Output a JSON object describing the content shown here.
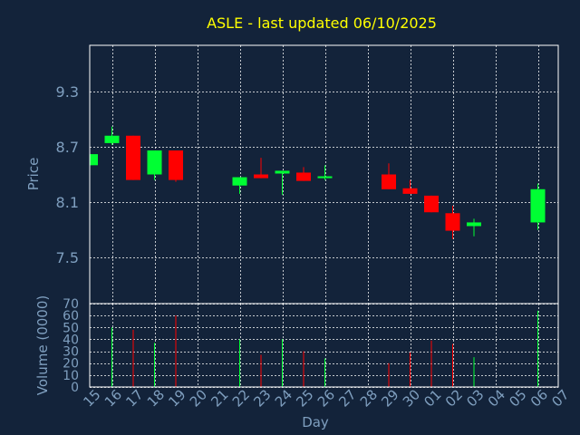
{
  "chart_data": [
    {
      "type": "candlestick",
      "title": "ASLE - last updated 06/10/2025",
      "ylabel": "Price",
      "ylim": [
        7.0,
        9.8
      ],
      "yticks": [
        "7.5",
        "8.1",
        "8.7",
        "9.3"
      ],
      "ytick_values": [
        7.5,
        8.1,
        8.7,
        9.3
      ],
      "grid": true,
      "up_color": "#00ff33",
      "down_color": "#ff0000",
      "candles": [
        {
          "day": "15",
          "open": 8.5,
          "close": 8.62,
          "high": 8.62,
          "low": 8.5
        },
        {
          "day": "16",
          "open": 8.74,
          "close": 8.82,
          "high": 8.92,
          "low": 8.72
        },
        {
          "day": "17",
          "open": 8.82,
          "close": 8.34,
          "high": 8.82,
          "low": 8.34
        },
        {
          "day": "18",
          "open": 8.4,
          "close": 8.66,
          "high": 8.66,
          "low": 8.34
        },
        {
          "day": "19",
          "open": 8.66,
          "close": 8.34,
          "high": 8.66,
          "low": 8.32
        },
        {
          "day": "22",
          "open": 8.28,
          "close": 8.37,
          "high": 8.37,
          "low": 8.19
        },
        {
          "day": "23",
          "open": 8.4,
          "close": 8.36,
          "high": 8.58,
          "low": 8.36
        },
        {
          "day": "24",
          "open": 8.41,
          "close": 8.44,
          "high": 8.44,
          "low": 8.18
        },
        {
          "day": "25",
          "open": 8.42,
          "close": 8.33,
          "high": 8.48,
          "low": 8.33
        },
        {
          "day": "26",
          "open": 8.36,
          "close": 8.38,
          "high": 8.5,
          "low": 8.34
        },
        {
          "day": "29",
          "open": 8.4,
          "close": 8.24,
          "high": 8.52,
          "low": 8.24
        },
        {
          "day": "30",
          "open": 8.25,
          "close": 8.19,
          "high": 8.34,
          "low": 8.19
        },
        {
          "day": "01",
          "open": 8.17,
          "close": 7.99,
          "high": 8.17,
          "low": 7.99
        },
        {
          "day": "02",
          "open": 7.98,
          "close": 7.79,
          "high": 8.06,
          "low": 7.7
        },
        {
          "day": "03",
          "open": 7.84,
          "close": 7.88,
          "high": 7.92,
          "low": 7.73
        },
        {
          "day": "06",
          "open": 7.88,
          "close": 8.24,
          "high": 8.3,
          "low": 7.8
        }
      ]
    },
    {
      "type": "bar",
      "ylabel": "Volume (0000)",
      "ylim": [
        0,
        70
      ],
      "yticks": [
        "0",
        "10",
        "20",
        "30",
        "40",
        "50",
        "60",
        "70"
      ],
      "ytick_values": [
        0,
        10,
        20,
        30,
        40,
        50,
        60,
        70
      ],
      "xlabel": "Day",
      "categories": [
        "15",
        "16",
        "17",
        "18",
        "19",
        "20",
        "21",
        "22",
        "23",
        "24",
        "25",
        "26",
        "27",
        "28",
        "29",
        "30",
        "01",
        "02",
        "03",
        "04",
        "05",
        "06",
        "07"
      ],
      "bars": [
        {
          "day": "16",
          "value": 50,
          "color": "#00ff33"
        },
        {
          "day": "17",
          "value": 48,
          "color": "#ff0000"
        },
        {
          "day": "18",
          "value": 37,
          "color": "#00ff33"
        },
        {
          "day": "19",
          "value": 60,
          "color": "#ff0000"
        },
        {
          "day": "22",
          "value": 40,
          "color": "#00ff33"
        },
        {
          "day": "23",
          "value": 27,
          "color": "#ff0000"
        },
        {
          "day": "24",
          "value": 40,
          "color": "#00ff33"
        },
        {
          "day": "25",
          "value": 30,
          "color": "#ff0000"
        },
        {
          "day": "26",
          "value": 24,
          "color": "#00ff33"
        },
        {
          "day": "29",
          "value": 20,
          "color": "#ff0000"
        },
        {
          "day": "30",
          "value": 29,
          "color": "#ff0000"
        },
        {
          "day": "01",
          "value": 39,
          "color": "#ff0000"
        },
        {
          "day": "02",
          "value": 36,
          "color": "#ff0000"
        },
        {
          "day": "03",
          "value": 25,
          "color": "#00ff33"
        },
        {
          "day": "06",
          "value": 64,
          "color": "#00ff33"
        }
      ]
    }
  ],
  "colors": {
    "background": "#13233a",
    "title": "#ffff00",
    "axis_text": "#7f9fbf",
    "grid": "#ffffff",
    "frame": "#ffffff"
  }
}
